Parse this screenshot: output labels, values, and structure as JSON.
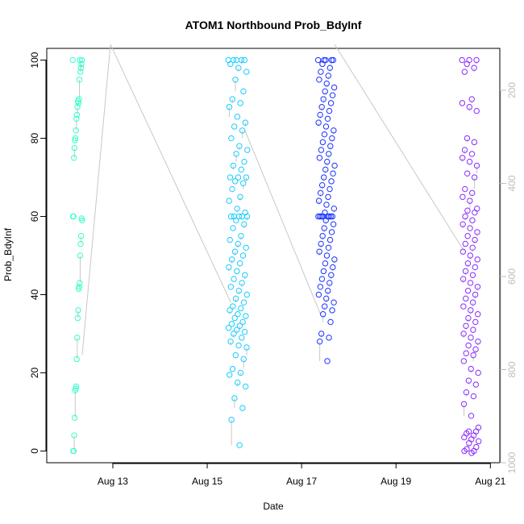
{
  "chart_data": {
    "type": "scatter",
    "title": "ATOM1 Northbound Prob_BdyInf",
    "xlabel": "Date",
    "ylabel": "Prob_BdyInf",
    "x_tick_labels": [
      "Aug 13",
      "Aug 15",
      "Aug 17",
      "Aug 19",
      "Aug 21"
    ],
    "x_ticks_days": [
      13,
      15,
      17,
      19,
      21
    ],
    "y_ticks": [
      0,
      20,
      40,
      60,
      80,
      100
    ],
    "y_right_ticks": [
      200,
      400,
      600,
      800,
      1000
    ],
    "xlim_days": [
      11.6,
      21.2
    ],
    "ylim": [
      -3,
      103
    ],
    "y_right_lim": [
      1000,
      110
    ],
    "right_axis_color": "#bdbdbd",
    "line_color": "#c8c8c8",
    "series": [
      {
        "color": "#33ffcc",
        "x_day_range": [
          12.15,
          12.35
        ],
        "y": [
          100,
          100,
          99,
          98,
          97,
          100,
          95,
          90,
          89,
          89.5,
          88,
          86,
          85,
          82,
          80,
          79.5,
          77.5,
          75,
          60,
          60,
          59,
          59.5,
          55,
          53,
          50,
          43,
          42,
          41.5,
          36,
          34,
          29,
          23.5,
          16.5,
          16,
          15.5,
          8.5,
          4,
          0,
          0
        ]
      },
      {
        "color": "#19ccff",
        "x_day_range": [
          15.45,
          15.85
        ],
        "y": [
          100,
          100,
          100,
          100,
          100,
          99,
          98,
          97,
          95,
          92,
          90,
          89,
          88,
          85.5,
          84,
          83,
          82,
          80,
          78,
          77,
          76,
          74,
          73,
          72,
          70,
          70,
          70,
          69,
          68.5,
          67,
          65,
          64,
          62,
          61,
          60,
          60,
          60,
          60,
          60,
          59,
          58,
          57,
          55,
          54,
          53,
          52,
          51,
          50,
          49,
          48,
          47,
          46,
          45,
          44,
          43,
          42,
          41,
          40,
          39,
          38,
          37,
          36.5,
          36,
          35,
          34.5,
          34,
          33,
          32.5,
          32,
          31.5,
          31,
          30.5,
          30,
          29,
          28,
          27,
          26.5,
          24.5,
          23.5,
          21,
          20,
          19.5,
          17.5,
          16.5,
          13.5,
          11,
          8,
          1.5
        ]
      },
      {
        "color": "#1a33ff",
        "x_day_range": [
          17.35,
          17.7
        ],
        "y": [
          100,
          100,
          100,
          100,
          100,
          99,
          98,
          97,
          96,
          95,
          94,
          93,
          92,
          91,
          90,
          89,
          88,
          87,
          86,
          85,
          84,
          83,
          82,
          81,
          80,
          79,
          78,
          77,
          76,
          75,
          74,
          73,
          72,
          71,
          70,
          69,
          68,
          67,
          66,
          65,
          64,
          63,
          62,
          61,
          60,
          60,
          60,
          60,
          60,
          60,
          60,
          60,
          59,
          58,
          57,
          56,
          55,
          54,
          53,
          52,
          51,
          50,
          49,
          48,
          47,
          46,
          45,
          44,
          43,
          42,
          41,
          40,
          39,
          38,
          37,
          36,
          35,
          33,
          30,
          29,
          28,
          23
        ]
      },
      {
        "color": "#8a2bff",
        "x_day_range": [
          20.4,
          20.75
        ],
        "y": [
          100,
          100,
          100,
          99,
          98,
          97,
          90,
          89,
          88,
          87,
          80,
          79,
          77,
          76,
          75,
          74,
          73,
          71,
          70,
          67,
          66,
          65,
          64,
          62,
          61.5,
          61,
          60,
          59,
          58,
          57,
          56,
          55,
          54,
          53,
          52,
          51,
          50,
          49,
          48,
          47,
          46,
          45,
          44,
          43,
          42,
          41,
          40,
          39,
          38,
          37,
          36,
          35,
          34,
          33,
          32,
          31,
          30,
          29,
          28,
          27,
          26,
          25,
          24.5,
          23,
          21,
          20,
          18,
          17,
          15,
          14,
          12,
          9,
          6,
          5,
          5,
          4.5,
          4,
          3.5,
          3,
          2.5,
          2,
          1,
          0.5,
          0,
          0,
          -0.5
        ]
      }
    ],
    "connector_lines": [
      {
        "from": [
          12.35,
          24.5
        ],
        "to": [
          12.95,
          104
        ]
      },
      {
        "from": [
          12.95,
          104
        ],
        "to": [
          15.5,
          38
        ]
      },
      {
        "from": [
          15.8,
          82
        ],
        "to": [
          17.4,
          35
        ]
      },
      {
        "from": [
          17.7,
          104
        ],
        "to": [
          20.45,
          51
        ]
      }
    ]
  }
}
